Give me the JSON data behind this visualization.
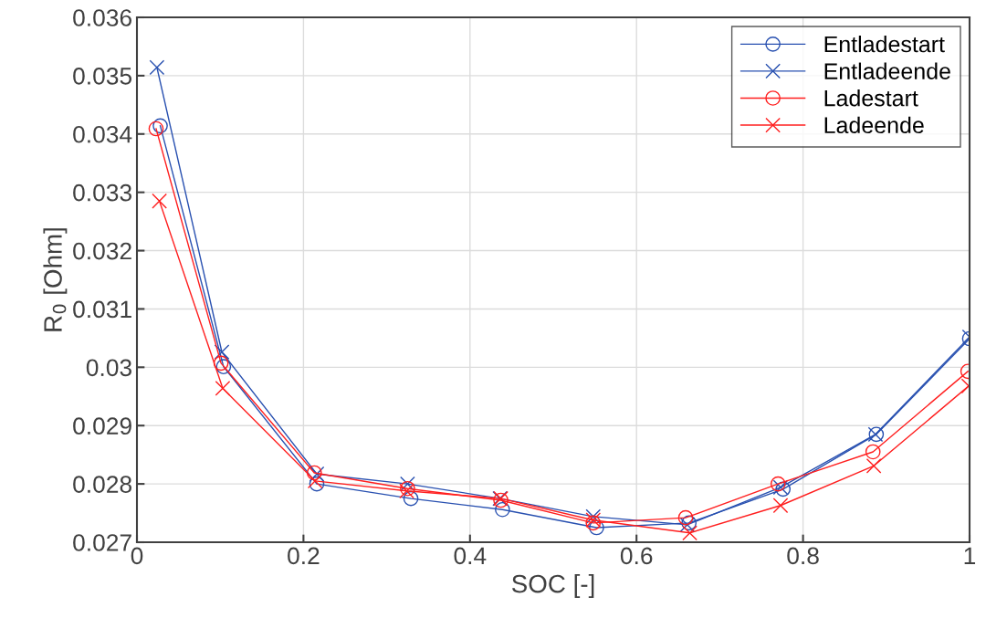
{
  "chart_data": {
    "type": "line",
    "xlabel": "SOC [-]",
    "ylabel": "R$_{0}$ [Ohm]",
    "xlim": [
      0,
      1
    ],
    "xticks": [
      0,
      0.2,
      0.4,
      0.6,
      0.8,
      1
    ],
    "ylim": [
      0.027,
      0.036
    ],
    "yticks": [
      0.027,
      0.028,
      0.029,
      0.03,
      0.031,
      0.032,
      0.033,
      0.034,
      0.035,
      0.036
    ],
    "grid": true,
    "legend": "top right",
    "line_style": "solid",
    "series": [
      {
        "name": "Entladestart",
        "color": "#2850b0",
        "marker": "circle",
        "x": [
          0.028,
          0.104,
          0.216,
          0.329,
          0.439,
          0.552,
          0.663,
          0.776,
          0.888,
          1.0
        ],
        "values": [
          0.03414,
          0.03001,
          0.028,
          0.02775,
          0.02756,
          0.02725,
          0.02733,
          0.02791,
          0.02885,
          0.03049
        ]
      },
      {
        "name": "Entladeende",
        "color": "#2850b0",
        "marker": "cross",
        "x": [
          0.024,
          0.102,
          0.216,
          0.325,
          0.436,
          0.548,
          0.661,
          0.773,
          0.887,
          1.0
        ],
        "values": [
          0.03514,
          0.03026,
          0.02817,
          0.028,
          0.02775,
          0.02744,
          0.0273,
          0.02794,
          0.02885,
          0.03052
        ]
      },
      {
        "name": "Ladestart",
        "color": "#ff1f1f",
        "marker": "circle",
        "x": [
          0.023,
          0.101,
          0.213,
          0.325,
          0.437,
          0.548,
          0.659,
          0.77,
          0.884,
          0.998
        ],
        "values": [
          0.03409,
          0.03007,
          0.02819,
          0.02792,
          0.02772,
          0.02733,
          0.02742,
          0.028,
          0.02855,
          0.02993
        ]
      },
      {
        "name": "Ladeende",
        "color": "#ff1f1f",
        "marker": "cross",
        "x": [
          0.027,
          0.103,
          0.214,
          0.324,
          0.437,
          0.548,
          0.664,
          0.773,
          0.885,
          0.999
        ],
        "values": [
          0.03285,
          0.02964,
          0.02805,
          0.02788,
          0.02775,
          0.02738,
          0.02716,
          0.02763,
          0.02831,
          0.02968
        ]
      }
    ]
  }
}
